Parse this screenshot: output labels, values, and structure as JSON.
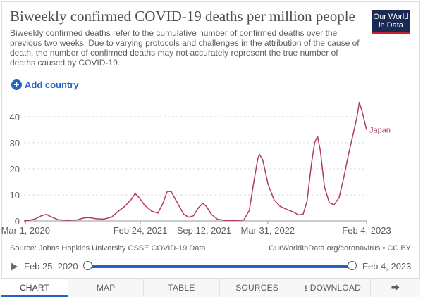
{
  "header": {
    "title": "Biweekly confirmed COVID-19 deaths per million people",
    "subtitle": "Biweekly confirmed deaths refer to the cumulative number of confirmed deaths over the previous two weeks. Due to varying protocols and challenges in the attribution of the cause of death, the number of confirmed deaths may not accurately represent the true number of deaths caused by COVID-19.",
    "logo_line1": "Our World",
    "logo_line2": "in Data",
    "add_country_label": "Add country"
  },
  "colors": {
    "series": "#b13b5b",
    "accent": "#2564c2",
    "logo_bg": "#1a2a53",
    "logo_bar": "#c8202f"
  },
  "footer": {
    "source": "Source: Johns Hopkins University CSSE COVID-19 Data",
    "license": "OurWorldInData.org/coronavirus • CC BY"
  },
  "timeline": {
    "start_label": "Feb 25, 2020",
    "end_label": "Feb 4, 2023"
  },
  "tabs": {
    "chart": "CHART",
    "map": "MAP",
    "table": "TABLE",
    "sources": "SOURCES",
    "download": "DOWNLOAD"
  },
  "icons": {
    "add": "plus-circle-icon",
    "play": "play-icon",
    "download": "download-icon",
    "share": "share-icon"
  },
  "chart_data": {
    "type": "line",
    "x_start": "2020-02-25",
    "x_end": "2023-02-04",
    "x_ticks": [
      {
        "date": "2020-03-01",
        "label": "Mar 1, 2020"
      },
      {
        "date": "2021-02-24",
        "label": "Feb 24, 2021"
      },
      {
        "date": "2021-09-12",
        "label": "Sep 12, 2021"
      },
      {
        "date": "2022-03-31",
        "label": "Mar 31, 2022"
      },
      {
        "date": "2023-02-04",
        "label": "Feb 4, 2023"
      }
    ],
    "y_ticks": [
      0,
      10,
      20,
      30,
      40
    ],
    "ylim": [
      0,
      47
    ],
    "grid": "horizontal dashed",
    "series": [
      {
        "name": "Japan",
        "points": [
          [
            "2020-02-25",
            0.0
          ],
          [
            "2020-03-15",
            0.3
          ],
          [
            "2020-04-01",
            0.8
          ],
          [
            "2020-04-20",
            2.0
          ],
          [
            "2020-05-05",
            2.5
          ],
          [
            "2020-05-20",
            1.6
          ],
          [
            "2020-06-10",
            0.5
          ],
          [
            "2020-07-10",
            0.2
          ],
          [
            "2020-08-10",
            0.4
          ],
          [
            "2020-09-01",
            1.2
          ],
          [
            "2020-09-15",
            1.3
          ],
          [
            "2020-10-10",
            0.8
          ],
          [
            "2020-11-01",
            0.7
          ],
          [
            "2020-11-25",
            1.4
          ],
          [
            "2020-12-15",
            3.5
          ],
          [
            "2021-01-05",
            5.5
          ],
          [
            "2021-01-25",
            8.0
          ],
          [
            "2021-02-08",
            10.5
          ],
          [
            "2021-02-20",
            9.0
          ],
          [
            "2021-03-10",
            6.0
          ],
          [
            "2021-03-31",
            3.8
          ],
          [
            "2021-04-20",
            3.0
          ],
          [
            "2021-05-05",
            6.5
          ],
          [
            "2021-05-20",
            11.4
          ],
          [
            "2021-06-01",
            11.2
          ],
          [
            "2021-06-20",
            7.0
          ],
          [
            "2021-07-10",
            2.6
          ],
          [
            "2021-07-25",
            1.4
          ],
          [
            "2021-08-10",
            2.0
          ],
          [
            "2021-08-25",
            5.0
          ],
          [
            "2021-09-08",
            6.8
          ],
          [
            "2021-09-20",
            5.5
          ],
          [
            "2021-10-05",
            2.5
          ],
          [
            "2021-10-25",
            0.6
          ],
          [
            "2021-11-20",
            0.2
          ],
          [
            "2021-12-20",
            0.15
          ],
          [
            "2022-01-15",
            0.4
          ],
          [
            "2022-02-01",
            4.0
          ],
          [
            "2022-02-15",
            15.0
          ],
          [
            "2022-02-28",
            24.0
          ],
          [
            "2022-03-05",
            25.5
          ],
          [
            "2022-03-15",
            23.5
          ],
          [
            "2022-04-01",
            14.0
          ],
          [
            "2022-04-20",
            8.0
          ],
          [
            "2022-05-10",
            5.5
          ],
          [
            "2022-06-01",
            4.3
          ],
          [
            "2022-06-20",
            3.4
          ],
          [
            "2022-07-05",
            2.3
          ],
          [
            "2022-07-20",
            2.6
          ],
          [
            "2022-08-01",
            7.5
          ],
          [
            "2022-08-15",
            22.0
          ],
          [
            "2022-08-25",
            30.0
          ],
          [
            "2022-09-03",
            32.5
          ],
          [
            "2022-09-12",
            27.0
          ],
          [
            "2022-09-25",
            13.0
          ],
          [
            "2022-10-10",
            7.0
          ],
          [
            "2022-10-25",
            6.2
          ],
          [
            "2022-11-10",
            9.0
          ],
          [
            "2022-11-25",
            17.0
          ],
          [
            "2022-12-10",
            26.0
          ],
          [
            "2022-12-25",
            34.0
          ],
          [
            "2023-01-05",
            40.0
          ],
          [
            "2023-01-12",
            45.5
          ],
          [
            "2023-01-20",
            42.5
          ],
          [
            "2023-01-28",
            38.5
          ],
          [
            "2023-02-04",
            35.0
          ]
        ]
      }
    ]
  }
}
